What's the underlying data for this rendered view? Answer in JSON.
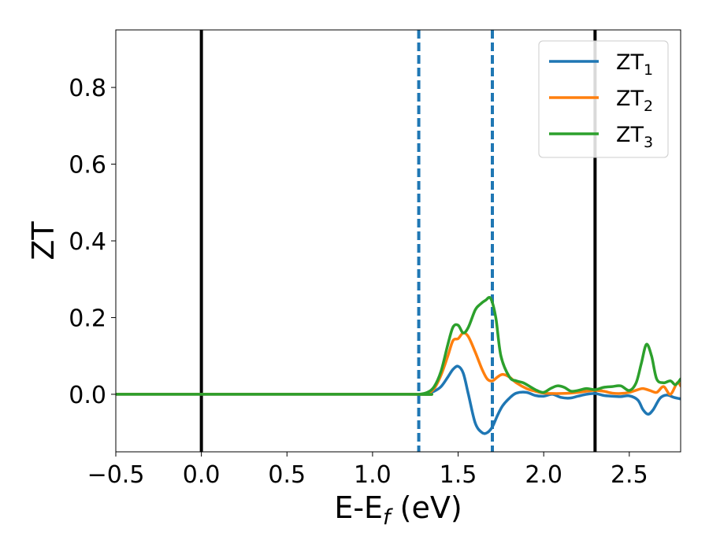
{
  "chart_data": {
    "type": "line",
    "xlabel": "E-E",
    "xlabel_sub": "f",
    "xlabel_unit": " (eV)",
    "ylabel": "ZT",
    "xlim": [
      -0.5,
      2.8
    ],
    "ylim": [
      -0.15,
      0.95
    ],
    "grid": false,
    "legend_position": "top-right",
    "x_ticks": [
      -0.5,
      0.0,
      0.5,
      1.0,
      1.5,
      2.0,
      2.5
    ],
    "x_tick_labels": [
      "−0.5",
      "0.0",
      "0.5",
      "1.0",
      "1.5",
      "2.0",
      "2.5"
    ],
    "y_ticks": [
      0.0,
      0.2,
      0.4,
      0.6,
      0.8
    ],
    "y_tick_labels": [
      "0.0",
      "0.2",
      "0.4",
      "0.6",
      "0.8"
    ],
    "vertical_lines": [
      {
        "x": 0.0,
        "style": "solid",
        "color": "#000000"
      },
      {
        "x": 2.3,
        "style": "solid",
        "color": "#000000"
      },
      {
        "x": 1.27,
        "style": "dashed",
        "color": "#1f77b4"
      },
      {
        "x": 1.7,
        "style": "dashed",
        "color": "#1f77b4"
      }
    ],
    "series": [
      {
        "name": "ZT",
        "name_sub": "1",
        "color": "#1f77b4",
        "x": [
          -0.5,
          1.2,
          1.27,
          1.32,
          1.36,
          1.4,
          1.44,
          1.47,
          1.5,
          1.53,
          1.56,
          1.6,
          1.64,
          1.67,
          1.7,
          1.73,
          1.76,
          1.8,
          1.84,
          1.9,
          1.95,
          2.0,
          2.05,
          2.1,
          2.15,
          2.2,
          2.25,
          2.3,
          2.35,
          2.4,
          2.45,
          2.5,
          2.55,
          2.58,
          2.61,
          2.64,
          2.68,
          2.72,
          2.76,
          2.8
        ],
        "y": [
          0.0,
          0.0,
          0.0,
          0.002,
          0.008,
          0.02,
          0.045,
          0.065,
          0.073,
          0.055,
          0.0,
          -0.075,
          -0.1,
          -0.1,
          -0.085,
          -0.055,
          -0.03,
          -0.01,
          0.003,
          0.005,
          -0.003,
          -0.005,
          0.0,
          -0.008,
          -0.01,
          -0.005,
          0.0,
          0.002,
          -0.003,
          -0.005,
          -0.006,
          -0.004,
          -0.015,
          -0.04,
          -0.052,
          -0.04,
          -0.01,
          -0.002,
          -0.008,
          -0.012
        ]
      },
      {
        "name": "ZT",
        "name_sub": "2",
        "color": "#ff7f0e",
        "x": [
          -0.5,
          1.2,
          1.27,
          1.32,
          1.36,
          1.4,
          1.44,
          1.47,
          1.5,
          1.53,
          1.56,
          1.6,
          1.64,
          1.67,
          1.7,
          1.73,
          1.76,
          1.8,
          1.84,
          1.9,
          1.95,
          2.0,
          2.05,
          2.1,
          2.15,
          2.2,
          2.25,
          2.3,
          2.35,
          2.4,
          2.45,
          2.5,
          2.55,
          2.58,
          2.62,
          2.66,
          2.7,
          2.74,
          2.78,
          2.8
        ],
        "y": [
          0.0,
          0.0,
          0.0,
          0.003,
          0.015,
          0.05,
          0.1,
          0.14,
          0.145,
          0.16,
          0.15,
          0.11,
          0.065,
          0.04,
          0.035,
          0.045,
          0.052,
          0.045,
          0.03,
          0.015,
          0.008,
          0.003,
          0.002,
          0.002,
          0.003,
          0.005,
          0.008,
          0.01,
          0.008,
          0.003,
          0.002,
          0.005,
          0.012,
          0.015,
          0.01,
          0.005,
          0.02,
          0.0,
          0.03,
          0.022
        ]
      },
      {
        "name": "ZT",
        "name_sub": "3",
        "color": "#2ca02c",
        "x": [
          -0.5,
          1.2,
          1.27,
          1.32,
          1.36,
          1.4,
          1.44,
          1.47,
          1.5,
          1.53,
          1.56,
          1.6,
          1.63,
          1.66,
          1.69,
          1.72,
          1.75,
          1.8,
          1.84,
          1.88,
          1.92,
          1.96,
          2.0,
          2.04,
          2.08,
          2.12,
          2.16,
          2.2,
          2.25,
          2.3,
          2.35,
          2.4,
          2.45,
          2.5,
          2.54,
          2.57,
          2.6,
          2.63,
          2.66,
          2.7,
          2.74,
          2.77,
          2.8
        ],
        "y": [
          0.0,
          0.0,
          0.0,
          0.005,
          0.02,
          0.06,
          0.13,
          0.175,
          0.18,
          0.16,
          0.175,
          0.22,
          0.235,
          0.245,
          0.25,
          0.2,
          0.1,
          0.045,
          0.035,
          0.03,
          0.02,
          0.01,
          0.005,
          0.015,
          0.022,
          0.018,
          0.008,
          0.01,
          0.015,
          0.012,
          0.018,
          0.02,
          0.022,
          0.01,
          0.03,
          0.08,
          0.13,
          0.1,
          0.04,
          0.03,
          0.035,
          0.025,
          0.04
        ]
      }
    ]
  }
}
